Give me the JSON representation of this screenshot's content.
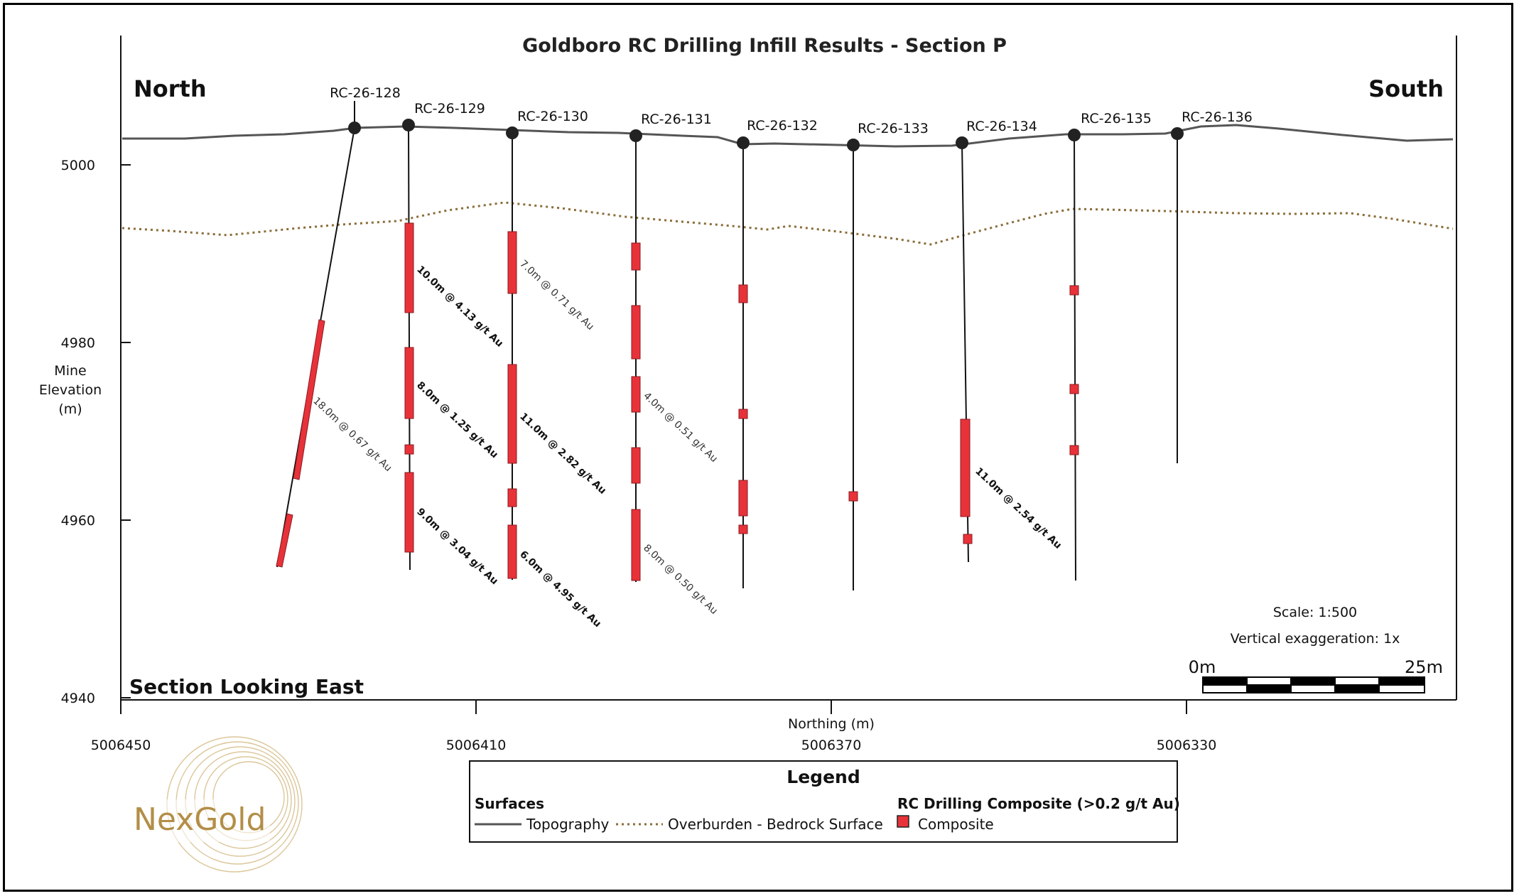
{
  "title": "Goldboro RC Drilling Infill Results - Section P",
  "compass": {
    "left": "North",
    "right": "South"
  },
  "view_label": "Section Looking East",
  "y_axis": {
    "label_lines": [
      "Mine",
      "Elevation",
      "(m)"
    ],
    "ticks": [
      "5000",
      "4980",
      "4960",
      "4940"
    ]
  },
  "x_axis": {
    "label": "Northing (m)",
    "ticks": [
      "5006450",
      "5006410",
      "5006370",
      "5006330"
    ]
  },
  "scale": {
    "text": "Scale: 1:500",
    "exaggeration": "Vertical exaggeration: 1x",
    "start_label": "0m",
    "end_label": "25m"
  },
  "holes": [
    "RC-26-128",
    "RC-26-129",
    "RC-26-130",
    "RC-26-131",
    "RC-26-132",
    "RC-26-133",
    "RC-26-134",
    "RC-26-135",
    "RC-26-136"
  ],
  "intervals": [
    "18.0m @ 0.67 g/t Au",
    "10.0m @ 4.13 g/t Au",
    "8.0m @ 1.25 g/t Au",
    "9.0m @ 3.04 g/t Au",
    "7.0m @ 0.71 g/t Au",
    "11.0m @ 2.82 g/t Au",
    "6.0m @ 4.95 g/t Au",
    "4.0m @ 0.51 g/t Au",
    "8.0m @ 0.50 g/t Au",
    "11.0m @ 2.54 g/t Au"
  ],
  "legend": {
    "title": "Legend",
    "surfaces_heading": "Surfaces",
    "topography": "Topography",
    "overburden": "Overburden - Bedrock Surface",
    "composite_heading": "RC Drilling Composite (>0.2 g/t Au)",
    "composite": "Composite"
  },
  "logo": "NexGold",
  "colors": {
    "composite": "#e8323a",
    "topography": "#555555",
    "overburden": "#8b6d3a",
    "logo": "#b38e47"
  }
}
